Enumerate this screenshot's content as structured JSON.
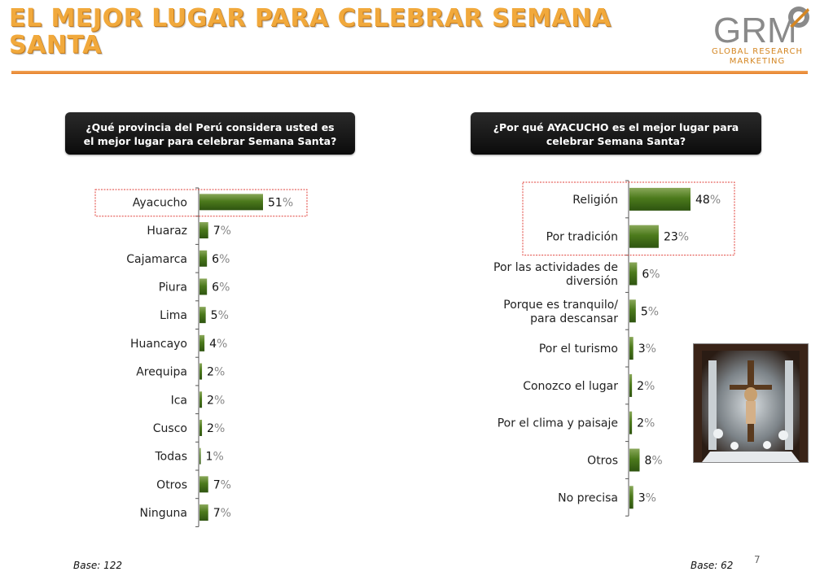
{
  "page": {
    "title": "EL MEJOR LUGAR PARA CELEBRAR SEMANA SANTA",
    "title_line1": "EL MEJOR LUGAR PARA CELEBRAR SEMANA",
    "title_line2": "SANTA",
    "logo_text": "GRM",
    "logo_subtitle_line1": "GLOBAL RESEARCH",
    "logo_subtitle_line2": "MARKETING",
    "page_number": "7"
  },
  "colors": {
    "title": "#f1a93c",
    "rule": "#e8893a",
    "bar": "#4c7a1c",
    "highlight_box": "#e0403a",
    "logo_gray": "#8a8a8a",
    "logo_orange": "#d48622"
  },
  "chart_data": [
    {
      "type": "bar",
      "orientation": "horizontal",
      "question": "¿Qué provincia del Perú considera usted es el mejor lugar para celebrar Semana Santa?",
      "categories": [
        "Ayacucho",
        "Huaraz",
        "Cajamarca",
        "Piura",
        "Lima",
        "Huancayo",
        "Arequipa",
        "Ica",
        "Cusco",
        "Todas",
        "Otros",
        "Ninguna"
      ],
      "values": [
        51,
        7,
        6,
        6,
        5,
        4,
        2,
        2,
        2,
        1,
        7,
        7
      ],
      "unit": "%",
      "highlighted": [
        "Ayacucho"
      ],
      "base": "Base: 122"
    },
    {
      "type": "bar",
      "orientation": "horizontal",
      "question": "¿Por qué AYACUCHO es el mejor lugar para celebrar Semana Santa?",
      "categories": [
        [
          "Religión"
        ],
        [
          "Por tradición"
        ],
        [
          "Por las actividades de",
          "diversión"
        ],
        [
          "Porque es tranquilo/",
          "para descansar"
        ],
        [
          "Por el turismo"
        ],
        [
          "Conozco el lugar"
        ],
        [
          "Por el clima y paisaje"
        ],
        [
          "Otros"
        ],
        [
          "No precisa"
        ]
      ],
      "values": [
        48,
        23,
        6,
        5,
        3,
        2,
        2,
        8,
        3
      ],
      "unit": "%",
      "highlighted": [
        "Religión",
        "Por tradición"
      ],
      "base": "Base: 62"
    }
  ]
}
